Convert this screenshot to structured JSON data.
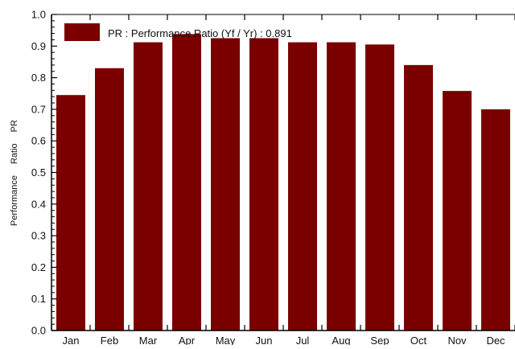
{
  "chart_data": {
    "type": "bar",
    "title": "",
    "xlabel": "",
    "ylabel": "Performance Ratio PR",
    "ylabel_words": [
      "Performance",
      "Ratio",
      "PR"
    ],
    "categories": [
      "Jan",
      "Feb",
      "Mar",
      "Apr",
      "May",
      "Jun",
      "Jul",
      "Aug",
      "Sep",
      "Oct",
      "Nov",
      "Dec"
    ],
    "values": [
      0.745,
      0.83,
      0.912,
      0.938,
      0.925,
      0.925,
      0.912,
      0.912,
      0.905,
      0.84,
      0.758,
      0.7
    ],
    "ylim": [
      0,
      1.0
    ],
    "yticks": [
      "0.0",
      "0.1",
      "0.2",
      "0.3",
      "0.4",
      "0.5",
      "0.6",
      "0.7",
      "0.8",
      "0.9",
      "1.0"
    ],
    "grid": false,
    "legend": {
      "position": "top-left",
      "label": "PR : Performance Ratio (Yf / Yr) :  0.891"
    },
    "colors": {
      "bar": "#7a0000",
      "axis": "#000000",
      "text": "#111111"
    }
  }
}
